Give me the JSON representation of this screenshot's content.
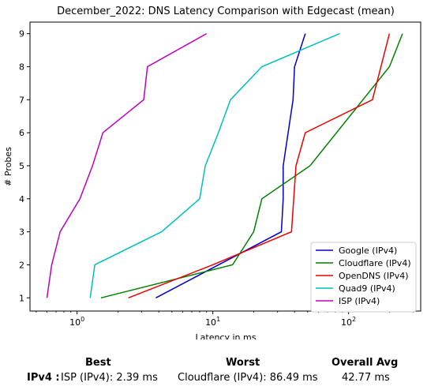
{
  "chart_data": {
    "type": "line",
    "title": "December_2022: DNS Latency Comparison with Edgecast (mean)",
    "xlabel": "Latency in ms",
    "ylabel": "# Probes",
    "xscale": "log",
    "xlim": [
      0.45,
      340
    ],
    "ylim": [
      0.6,
      9.35
    ],
    "x_ticks": [
      {
        "value": 1,
        "base": "10",
        "exp": "0"
      },
      {
        "value": 10,
        "base": "10",
        "exp": "1"
      },
      {
        "value": 100,
        "base": "10",
        "exp": "2"
      }
    ],
    "y_ticks": [
      "1",
      "2",
      "3",
      "4",
      "5",
      "6",
      "7",
      "8",
      "9"
    ],
    "grid": false,
    "legend_position": "lower-right",
    "series": [
      {
        "name": "Google (IPv4)",
        "color": "#0000cc",
        "x": [
          3.8,
          32,
          33,
          33,
          39,
          40,
          48
        ],
        "y": [
          1,
          3,
          4,
          5,
          7,
          8,
          9
        ]
      },
      {
        "name": "Cloudflare (IPv4)",
        "color": "#008000",
        "x": [
          1.5,
          14,
          20,
          23,
          52,
          200,
          250
        ],
        "y": [
          1,
          2,
          3,
          4,
          5,
          8,
          9
        ]
      },
      {
        "name": "OpenDNS (IPv4)",
        "color": "#ee0000",
        "x": [
          2.39,
          10,
          38,
          41,
          48,
          150,
          200
        ],
        "y": [
          1,
          2,
          3,
          5,
          6,
          7,
          9
        ]
      },
      {
        "name": "Quad9 (IPv4)",
        "color": "#00bfbf",
        "x": [
          1.25,
          1.35,
          4.2,
          8,
          8.8,
          11,
          13.5,
          23,
          86
        ],
        "y": [
          1,
          2,
          3,
          4,
          5,
          6,
          7,
          8,
          9
        ]
      },
      {
        "name": "ISP (IPv4)",
        "color": "#bf00bf",
        "x": [
          0.6,
          0.65,
          0.75,
          1.05,
          1.3,
          1.55,
          3.1,
          3.3,
          9
        ],
        "y": [
          1,
          2,
          3,
          4,
          5,
          6,
          7,
          8,
          9
        ]
      }
    ]
  },
  "summary": {
    "best_label": "Best",
    "worst_label": "Worst",
    "avg_label": "Overall Avg",
    "row_label": "IPv4 :",
    "best_value": "ISP (IPv4): 2.39 ms",
    "worst_value": "Cloudflare (IPv4): 86.49 ms",
    "avg_value": "42.77 ms"
  }
}
